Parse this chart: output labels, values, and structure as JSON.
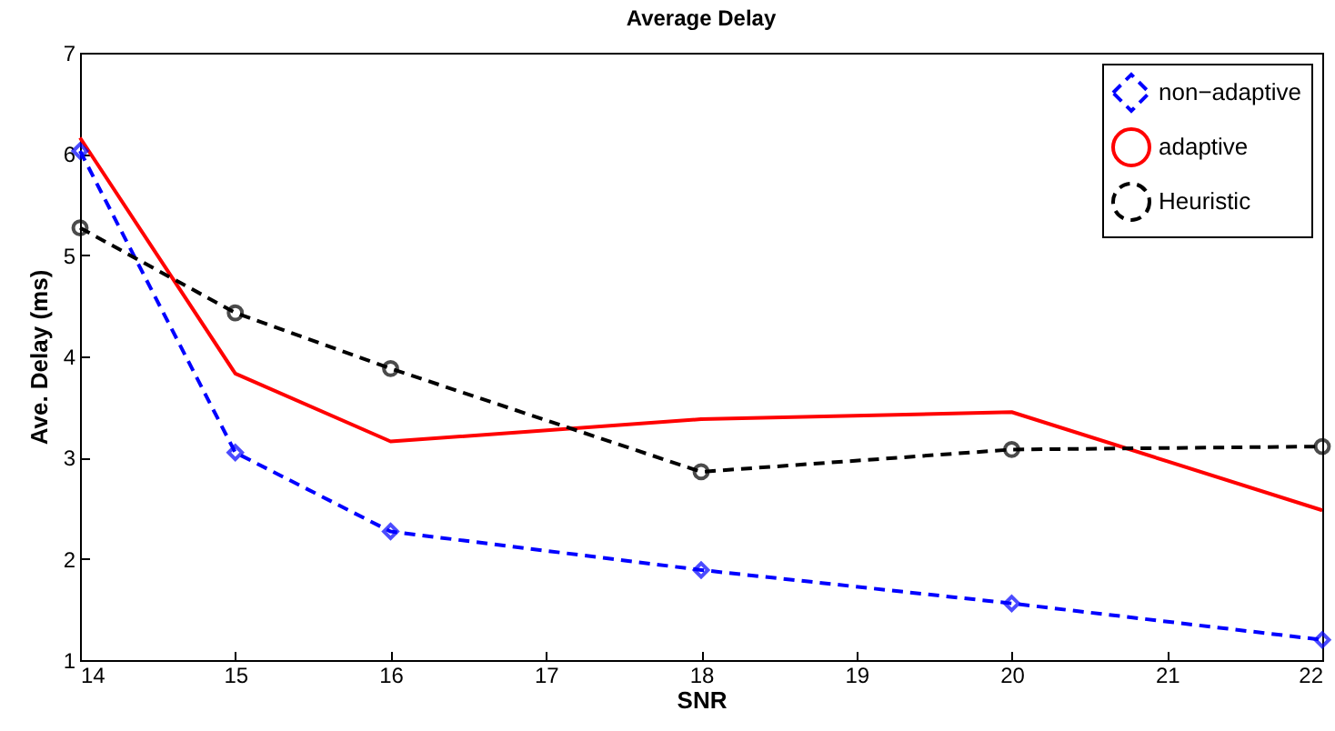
{
  "chart_data": {
    "type": "line",
    "title": "Average Delay",
    "xlabel": "SNR",
    "ylabel": "Ave. Delay (ms)",
    "x": [
      14,
      15,
      16,
      18,
      20,
      22
    ],
    "series": [
      {
        "name": "non−adaptive",
        "color": "#0000ff",
        "values": [
          6.03,
          3.05,
          2.27,
          1.89,
          1.56,
          1.2
        ],
        "marker": "diamond",
        "line_style": "dashed"
      },
      {
        "name": "adaptive",
        "color": "#ff0000",
        "values": [
          6.16,
          3.83,
          3.16,
          3.38,
          3.45,
          2.48
        ],
        "marker": "none",
        "line_style": "solid"
      },
      {
        "name": "Heuristic",
        "color": "#000000",
        "values": [
          5.27,
          4.43,
          3.88,
          2.86,
          3.08,
          3.11
        ],
        "marker": "circle",
        "line_style": "dashed"
      }
    ],
    "xlim": [
      14,
      22
    ],
    "xticks": [
      14,
      15,
      16,
      17,
      18,
      19,
      20,
      21,
      22
    ],
    "ylim": [
      1,
      7
    ],
    "yticks": [
      1,
      2,
      3,
      4,
      5,
      6,
      7
    ],
    "grid": false,
    "legend": "top right"
  }
}
